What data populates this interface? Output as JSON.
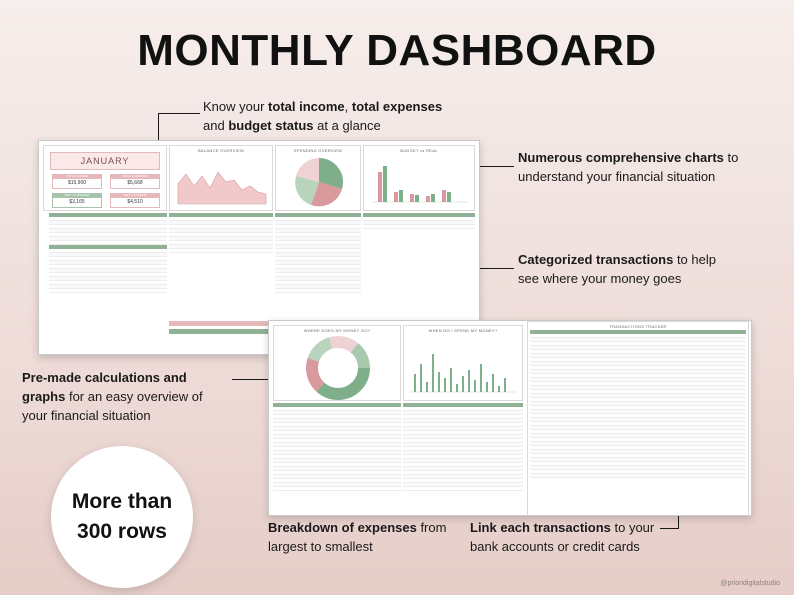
{
  "title": "MONTHLY DASHBOARD",
  "callouts": {
    "top": {
      "pre1": "Know your ",
      "b1": "total income",
      "mid1": ", ",
      "b2": "total expenses",
      "line2pre": "and ",
      "b3": "budget status",
      "post": " at a glance"
    },
    "charts": {
      "b": "Numerous comprehensive charts",
      "post": " to",
      "line2": "understand your financial situation"
    },
    "categorized": {
      "b": "Categorized transactions",
      "post": " to help",
      "line2": "see where your money goes"
    },
    "premade": {
      "b": "Pre-made calculations and",
      "line2b": "graphs",
      "line2post": " for an easy overview of",
      "line3": "your financial situation"
    },
    "breakdown": {
      "b": "Breakdown of expenses",
      "post": " from",
      "line2": "largest to smallest"
    },
    "link": {
      "b": "Link each transactions",
      "post": " to your",
      "line2": "bank accounts or credit cards"
    }
  },
  "badge": "More than 300 rows",
  "watermark": "@prioridigitalstudio",
  "sheet1": {
    "month": "JANUARY",
    "kpis": [
      {
        "label": "TOTAL INCOME",
        "value": "$15,900"
      },
      {
        "label": "TOTAL EXPENSES",
        "value": "$5,668"
      },
      {
        "label": "LEFT TO BUDGET",
        "value": "$3,165"
      },
      {
        "label": "LEFT TO SPEND",
        "value": "$4,510"
      }
    ],
    "panels": {
      "balance": "BALANCE OVERVIEW",
      "spending": "SPENDING OVERVIEW",
      "budget": "BUDGET vs REAL"
    }
  },
  "sheet2": {
    "panels": {
      "where": "WHERE DOES MY MONEY GO?",
      "when": "WHEN DO I SPEND MY MONEY?",
      "tracker": "TRANSACTIONS TRACKER"
    }
  },
  "colors": {
    "accent_pink": "#e7b8ba",
    "accent_green": "#8fb296"
  }
}
